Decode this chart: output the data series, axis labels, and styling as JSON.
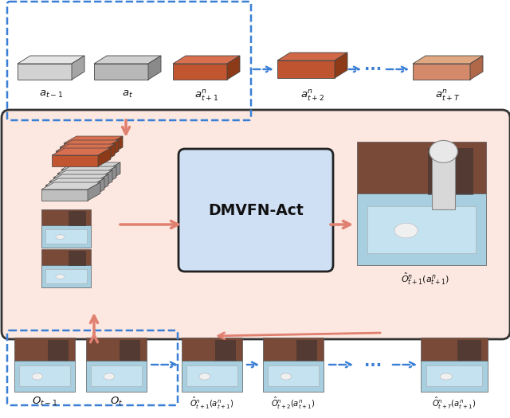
{
  "bg_color": "#ffffff",
  "main_box_color": "#fce8e0",
  "main_box_edge": "#333333",
  "dmvfn_box_color": "#cfe0f5",
  "dmvfn_box_edge": "#222222",
  "dashed_box_color": "#3a7fd5",
  "arrow_salmon": "#e08070",
  "arrow_blue": "#3a7fd5",
  "dmvfn_text": "DMVFN-Act",
  "label_a_t_minus1": "$a_{t-1}$",
  "label_a_t": "$a_t$",
  "label_a_t1n": "$a^n_{t+1}$",
  "label_a_t2n": "$a^n_{t+2}$",
  "label_a_tTn": "$a^n_{t+T}$",
  "label_O_t_minus1": "$O_{t-1}$",
  "label_O_t": "$O_t$",
  "label_O_hat_t1": "$\\hat{O}^n_{t+1}(a^n_{t+1})$",
  "label_O_hat_t2": "$\\hat{O}^n_{t+2}(a^n_{t+1})$",
  "label_O_hat_tT": "$\\hat{O}^n_{t+T}(a^n_{t+1})$",
  "label_O_hat_box": "$\\hat{O}^n_{t+1}(a^n_{t+1})$"
}
